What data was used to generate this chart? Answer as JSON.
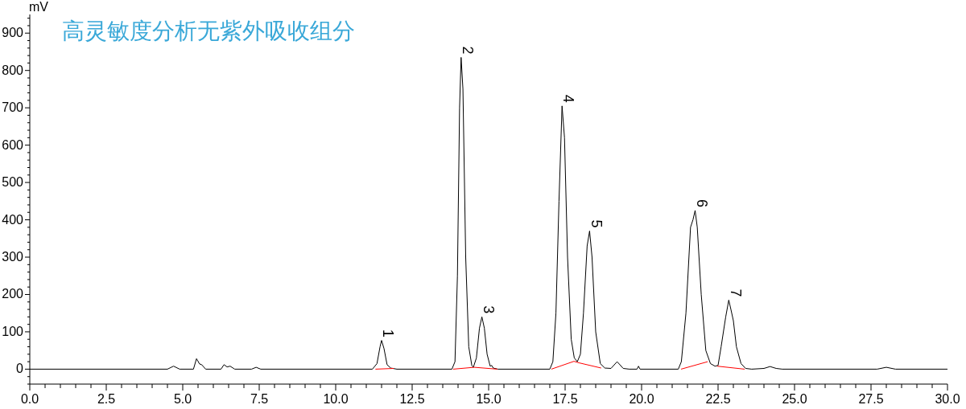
{
  "chart_data": {
    "type": "line",
    "title": "高灵敏度分析无紫外吸收组分",
    "ylabel": "mV",
    "xlim": [
      0,
      30
    ],
    "ylim": [
      -40,
      950
    ],
    "xticks": [
      {
        "value": 0,
        "label": "0.0"
      },
      {
        "value": 0.5,
        "label": null
      },
      {
        "value": 1,
        "label": null
      },
      {
        "value": 1.5,
        "label": null
      },
      {
        "value": 2,
        "label": null
      },
      {
        "value": 2.5,
        "label": "2.5"
      },
      {
        "value": 3,
        "label": null
      },
      {
        "value": 3.5,
        "label": null
      },
      {
        "value": 4,
        "label": null
      },
      {
        "value": 4.5,
        "label": null
      },
      {
        "value": 5,
        "label": "5.0"
      },
      {
        "value": 5.5,
        "label": null
      },
      {
        "value": 6,
        "label": null
      },
      {
        "value": 6.5,
        "label": null
      },
      {
        "value": 7,
        "label": null
      },
      {
        "value": 7.5,
        "label": "7.5"
      },
      {
        "value": 8,
        "label": null
      },
      {
        "value": 8.5,
        "label": null
      },
      {
        "value": 9,
        "label": null
      },
      {
        "value": 9.5,
        "label": null
      },
      {
        "value": 10,
        "label": "10.0"
      },
      {
        "value": 10.5,
        "label": null
      },
      {
        "value": 11,
        "label": null
      },
      {
        "value": 11.5,
        "label": null
      },
      {
        "value": 12,
        "label": null
      },
      {
        "value": 12.5,
        "label": "12.5"
      },
      {
        "value": 13,
        "label": null
      },
      {
        "value": 13.5,
        "label": null
      },
      {
        "value": 14,
        "label": null
      },
      {
        "value": 14.5,
        "label": null
      },
      {
        "value": 15,
        "label": "15.0"
      },
      {
        "value": 15.5,
        "label": null
      },
      {
        "value": 16,
        "label": null
      },
      {
        "value": 16.5,
        "label": null
      },
      {
        "value": 17,
        "label": null
      },
      {
        "value": 17.5,
        "label": "17.5"
      },
      {
        "value": 18,
        "label": null
      },
      {
        "value": 18.5,
        "label": null
      },
      {
        "value": 19,
        "label": null
      },
      {
        "value": 19.5,
        "label": null
      },
      {
        "value": 20,
        "label": "20.0"
      },
      {
        "value": 20.5,
        "label": null
      },
      {
        "value": 21,
        "label": null
      },
      {
        "value": 21.5,
        "label": null
      },
      {
        "value": 22,
        "label": null
      },
      {
        "value": 22.5,
        "label": "22.5"
      },
      {
        "value": 23,
        "label": null
      },
      {
        "value": 23.5,
        "label": null
      },
      {
        "value": 24,
        "label": null
      },
      {
        "value": 24.5,
        "label": null
      },
      {
        "value": 25,
        "label": "25.0"
      },
      {
        "value": 25.5,
        "label": null
      },
      {
        "value": 26,
        "label": null
      },
      {
        "value": 26.5,
        "label": null
      },
      {
        "value": 27,
        "label": null
      },
      {
        "value": 27.5,
        "label": "27.5"
      },
      {
        "value": 28,
        "label": null
      },
      {
        "value": 28.5,
        "label": null
      },
      {
        "value": 29,
        "label": null
      },
      {
        "value": 29.5,
        "label": null
      },
      {
        "value": 30,
        "label": "30.0"
      }
    ],
    "yticks": [
      {
        "value": -40,
        "label": null
      },
      {
        "value": -20,
        "label": null
      },
      0,
      {
        "value": 20,
        "label": null
      },
      {
        "value": 40,
        "label": null
      },
      {
        "value": 60,
        "label": null
      },
      {
        "value": 80,
        "label": null
      },
      100,
      {
        "value": 120,
        "label": null
      },
      {
        "value": 140,
        "label": null
      },
      {
        "value": 160,
        "label": null
      },
      {
        "value": 180,
        "label": null
      },
      200,
      {
        "value": 220,
        "label": null
      },
      {
        "value": 240,
        "label": null
      },
      {
        "value": 260,
        "label": null
      },
      {
        "value": 280,
        "label": null
      },
      300,
      {
        "value": 320,
        "label": null
      },
      {
        "value": 340,
        "label": null
      },
      {
        "value": 360,
        "label": null
      },
      {
        "value": 380,
        "label": null
      },
      400,
      {
        "value": 420,
        "label": null
      },
      {
        "value": 440,
        "label": null
      },
      {
        "value": 460,
        "label": null
      },
      {
        "value": 480,
        "label": null
      },
      500,
      {
        "value": 520,
        "label": null
      },
      {
        "value": 540,
        "label": null
      },
      {
        "value": 560,
        "label": null
      },
      {
        "value": 580,
        "label": null
      },
      600,
      {
        "value": 620,
        "label": null
      },
      {
        "value": 640,
        "label": null
      },
      {
        "value": 660,
        "label": null
      },
      {
        "value": 680,
        "label": null
      },
      700,
      {
        "value": 720,
        "label": null
      },
      {
        "value": 740,
        "label": null
      },
      {
        "value": 760,
        "label": null
      },
      {
        "value": 780,
        "label": null
      },
      800,
      {
        "value": 820,
        "label": null
      },
      {
        "value": 840,
        "label": null
      },
      {
        "value": 860,
        "label": null
      },
      {
        "value": 880,
        "label": null
      },
      900,
      {
        "value": 920,
        "label": null
      },
      {
        "value": 940,
        "label": null
      }
    ],
    "marker": "none",
    "line_style": "solid",
    "series": [
      {
        "color": "#000000",
        "x": [
          0,
          4.5,
          4.7,
          4.9,
          5.35,
          5.45,
          5.55,
          5.62,
          5.75,
          6.25,
          6.35,
          6.45,
          6.55,
          6.7,
          7.25,
          7.4,
          7.55,
          11.2,
          11.35,
          11.45,
          11.5,
          11.58,
          11.68,
          11.8,
          12,
          13.8,
          13.9,
          13.98,
          14.05,
          14.1,
          14.16,
          14.25,
          14.35,
          14.45,
          14.5,
          14.6,
          14.7,
          14.78,
          14.86,
          14.95,
          15.05,
          15.1,
          15.15,
          15.3,
          17.0,
          17.1,
          17.2,
          17.3,
          17.4,
          17.48,
          17.58,
          17.7,
          17.8,
          17.9,
          18.0,
          18.1,
          18.22,
          18.3,
          18.38,
          18.5,
          18.65,
          18.8,
          19.0,
          19.2,
          19.4,
          19.6,
          19.85,
          19.9,
          19.95,
          21.2,
          21.3,
          21.45,
          21.6,
          21.68,
          21.75,
          21.82,
          21.95,
          22.1,
          22.25,
          22.4,
          22.5,
          22.6,
          22.75,
          22.85,
          22.92,
          23.0,
          23.1,
          23.25,
          23.4,
          23.6,
          24.0,
          24.2,
          24.4,
          24.6,
          27.7,
          28.0,
          28.3,
          30
        ],
        "values": [
          0,
          0,
          8,
          0,
          0,
          28,
          14,
          12,
          0,
          0,
          12,
          6,
          8,
          0,
          0,
          5,
          0,
          0,
          15,
          60,
          77,
          55,
          12,
          3,
          0,
          0,
          20,
          250,
          700,
          835,
          750,
          300,
          60,
          10,
          5,
          30,
          110,
          140,
          110,
          40,
          8,
          10,
          3,
          0,
          0,
          20,
          150,
          450,
          705,
          620,
          300,
          80,
          30,
          20,
          40,
          150,
          330,
          370,
          300,
          100,
          15,
          3,
          2,
          20,
          2,
          0,
          0,
          8,
          0,
          0,
          20,
          150,
          380,
          400,
          425,
          380,
          200,
          50,
          15,
          8,
          10,
          60,
          140,
          185,
          160,
          130,
          60,
          15,
          2,
          0,
          2,
          7,
          2,
          0,
          0,
          5,
          0,
          0
        ]
      },
      {
        "color": "#ff0000",
        "x": [
          11.3,
          11.9,
          11.95,
          13.84,
          14.53,
          15.29,
          15.3,
          17.05,
          17.79,
          17.95,
          18.68,
          18.7,
          21.29,
          22.16,
          22.2,
          22.47,
          23.37
        ],
        "values": [
          0,
          2,
          null,
          0,
          5,
          0,
          null,
          0,
          21,
          17,
          3,
          null,
          0,
          20,
          null,
          8,
          0
        ]
      }
    ],
    "annotations": [
      {
        "text": "1",
        "x": 11.5,
        "y": 77
      },
      {
        "text": "2",
        "x": 14.1,
        "y": 835
      },
      {
        "text": "3",
        "x": 14.78,
        "y": 140
      },
      {
        "text": "4",
        "x": 17.4,
        "y": 705
      },
      {
        "text": "5",
        "x": 18.3,
        "y": 370
      },
      {
        "text": "6",
        "x": 21.75,
        "y": 425
      },
      {
        "text": "7",
        "x": 22.85,
        "y": 185
      }
    ]
  }
}
